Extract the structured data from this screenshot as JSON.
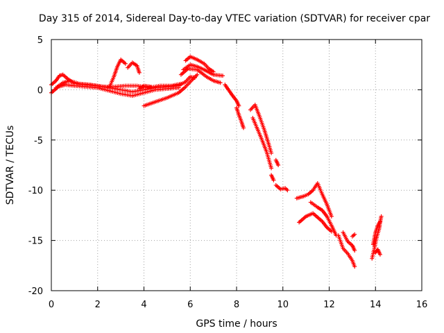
{
  "chart_data": {
    "type": "scatter",
    "title": "Day 315 of 2014, Sidereal Day-to-day VTEC variation (SDTVAR) for receiver cpar",
    "xlabel": "GPS time / hours",
    "ylabel": "SDTVAR / TECUs",
    "xlim": [
      0,
      16
    ],
    "ylim": [
      -20,
      5
    ],
    "xticks": [
      0,
      2,
      4,
      6,
      8,
      10,
      12,
      14,
      16
    ],
    "yticks": [
      -20,
      -15,
      -10,
      -5,
      0,
      5
    ],
    "grid": true,
    "marker": "+",
    "series": [
      {
        "name": "SDTVAR",
        "color": "#ff0000",
        "tracks": [
          [
            [
              0.0,
              0.5
            ],
            [
              0.2,
              0.9
            ],
            [
              0.35,
              1.4
            ],
            [
              0.5,
              1.5
            ],
            [
              0.7,
              1.1
            ],
            [
              1.0,
              0.6
            ],
            [
              1.5,
              0.5
            ],
            [
              2.0,
              0.4
            ],
            [
              2.5,
              0.2
            ],
            [
              3.0,
              0.0
            ],
            [
              3.5,
              -0.2
            ],
            [
              4.0,
              0.0
            ],
            [
              4.5,
              0.2
            ],
            [
              5.0,
              0.3
            ],
            [
              5.5,
              0.4
            ],
            [
              5.8,
              0.8
            ],
            [
              6.0,
              1.3
            ],
            [
              6.2,
              1.2
            ]
          ],
          [
            [
              0.0,
              -0.3
            ],
            [
              0.3,
              0.3
            ],
            [
              0.6,
              0.5
            ],
            [
              1.0,
              0.4
            ],
            [
              1.5,
              0.3
            ],
            [
              2.0,
              0.2
            ],
            [
              2.5,
              -0.1
            ],
            [
              3.0,
              -0.4
            ],
            [
              3.5,
              -0.6
            ],
            [
              4.0,
              -0.3
            ],
            [
              4.5,
              0.0
            ],
            [
              5.0,
              0.1
            ],
            [
              5.5,
              0.2
            ]
          ],
          [
            [
              0.2,
              0.2
            ],
            [
              0.5,
              0.7
            ],
            [
              0.8,
              0.9
            ],
            [
              1.2,
              0.6
            ],
            [
              1.7,
              0.5
            ],
            [
              2.2,
              0.3
            ],
            [
              2.7,
              0.3
            ],
            [
              3.2,
              0.4
            ],
            [
              3.7,
              0.4
            ],
            [
              4.2,
              0.2
            ],
            [
              4.7,
              0.4
            ],
            [
              5.2,
              0.4
            ],
            [
              5.6,
              0.6
            ]
          ],
          [
            [
              2.5,
              0.2
            ],
            [
              2.7,
              1.3
            ],
            [
              2.85,
              2.3
            ],
            [
              3.0,
              3.0
            ],
            [
              3.2,
              2.6
            ]
          ],
          [
            [
              3.3,
              2.2
            ],
            [
              3.5,
              2.7
            ],
            [
              3.7,
              2.4
            ],
            [
              3.8,
              1.7
            ]
          ],
          [
            [
              3.8,
              0.1
            ],
            [
              4.0,
              0.4
            ],
            [
              4.3,
              0.3
            ]
          ],
          [
            [
              4.0,
              -1.6
            ],
            [
              4.5,
              -1.2
            ],
            [
              5.0,
              -0.8
            ],
            [
              5.5,
              -0.3
            ],
            [
              5.8,
              0.3
            ],
            [
              6.0,
              0.8
            ],
            [
              6.3,
              1.5
            ]
          ],
          [
            [
              5.7,
              2.0
            ],
            [
              6.0,
              2.5
            ],
            [
              6.3,
              2.3
            ],
            [
              6.6,
              2.0
            ],
            [
              7.0,
              1.5
            ],
            [
              7.4,
              1.4
            ]
          ],
          [
            [
              5.8,
              2.9
            ],
            [
              6.0,
              3.3
            ],
            [
              6.3,
              3.0
            ],
            [
              6.6,
              2.6
            ],
            [
              6.8,
              2.1
            ],
            [
              7.0,
              1.8
            ]
          ],
          [
            [
              5.6,
              1.5
            ],
            [
              5.9,
              2.1
            ],
            [
              6.3,
              2.0
            ],
            [
              6.7,
              1.3
            ],
            [
              7.0,
              0.9
            ],
            [
              7.3,
              0.7
            ]
          ],
          [
            [
              7.5,
              0.5
            ],
            [
              7.8,
              -0.5
            ],
            [
              8.0,
              -1.1
            ],
            [
              8.1,
              -1.6
            ]
          ],
          [
            [
              8.0,
              -1.8
            ],
            [
              8.1,
              -2.5
            ],
            [
              8.2,
              -3.1
            ],
            [
              8.3,
              -3.8
            ]
          ],
          [
            [
              8.6,
              -2.0
            ],
            [
              8.8,
              -1.5
            ],
            [
              9.0,
              -2.7
            ],
            [
              9.2,
              -4.0
            ],
            [
              9.4,
              -5.5
            ],
            [
              9.5,
              -6.3
            ]
          ],
          [
            [
              8.7,
              -2.8
            ],
            [
              8.9,
              -3.9
            ],
            [
              9.1,
              -5.0
            ],
            [
              9.3,
              -6.2
            ],
            [
              9.5,
              -7.8
            ]
          ],
          [
            [
              9.7,
              -7.0
            ],
            [
              9.8,
              -7.5
            ]
          ],
          [
            [
              9.5,
              -8.5
            ],
            [
              9.6,
              -9.0
            ]
          ],
          [
            [
              9.7,
              -9.5
            ],
            [
              9.9,
              -9.9
            ],
            [
              10.1,
              -9.8
            ],
            [
              10.2,
              -10.0
            ]
          ],
          [
            [
              10.6,
              -10.8
            ],
            [
              10.9,
              -10.6
            ],
            [
              11.1,
              -10.4
            ],
            [
              11.3,
              -10.0
            ],
            [
              11.5,
              -9.3
            ],
            [
              11.7,
              -10.4
            ],
            [
              11.9,
              -11.4
            ],
            [
              12.1,
              -12.6
            ]
          ],
          [
            [
              10.7,
              -13.2
            ],
            [
              11.0,
              -12.6
            ],
            [
              11.3,
              -12.3
            ],
            [
              11.5,
              -12.7
            ],
            [
              11.7,
              -13.1
            ],
            [
              11.9,
              -13.7
            ],
            [
              12.1,
              -14.1
            ]
          ],
          [
            [
              11.2,
              -11.2
            ],
            [
              11.5,
              -11.7
            ],
            [
              11.7,
              -12.0
            ],
            [
              11.9,
              -12.6
            ],
            [
              12.1,
              -13.5
            ],
            [
              12.3,
              -14.5
            ]
          ],
          [
            [
              12.6,
              -14.2
            ],
            [
              12.8,
              -15.1
            ],
            [
              13.0,
              -15.5
            ],
            [
              13.1,
              -16.0
            ]
          ],
          [
            [
              12.4,
              -14.5
            ],
            [
              12.6,
              -15.8
            ],
            [
              12.8,
              -16.3
            ],
            [
              13.0,
              -17.0
            ],
            [
              13.1,
              -17.6
            ]
          ],
          [
            [
              13.0,
              -14.6
            ],
            [
              13.1,
              -14.4
            ]
          ],
          [
            [
              13.85,
              -16.8
            ],
            [
              13.95,
              -15.8
            ],
            [
              14.05,
              -14.7
            ],
            [
              14.15,
              -13.9
            ],
            [
              14.2,
              -13.2
            ],
            [
              14.25,
              -12.6
            ]
          ],
          [
            [
              13.9,
              -15.4
            ],
            [
              14.0,
              -14.2
            ],
            [
              14.1,
              -13.5
            ],
            [
              14.2,
              -13.1
            ]
          ],
          [
            [
              14.0,
              -16.2
            ],
            [
              14.1,
              -15.9
            ],
            [
              14.2,
              -16.4
            ]
          ]
        ]
      }
    ]
  }
}
